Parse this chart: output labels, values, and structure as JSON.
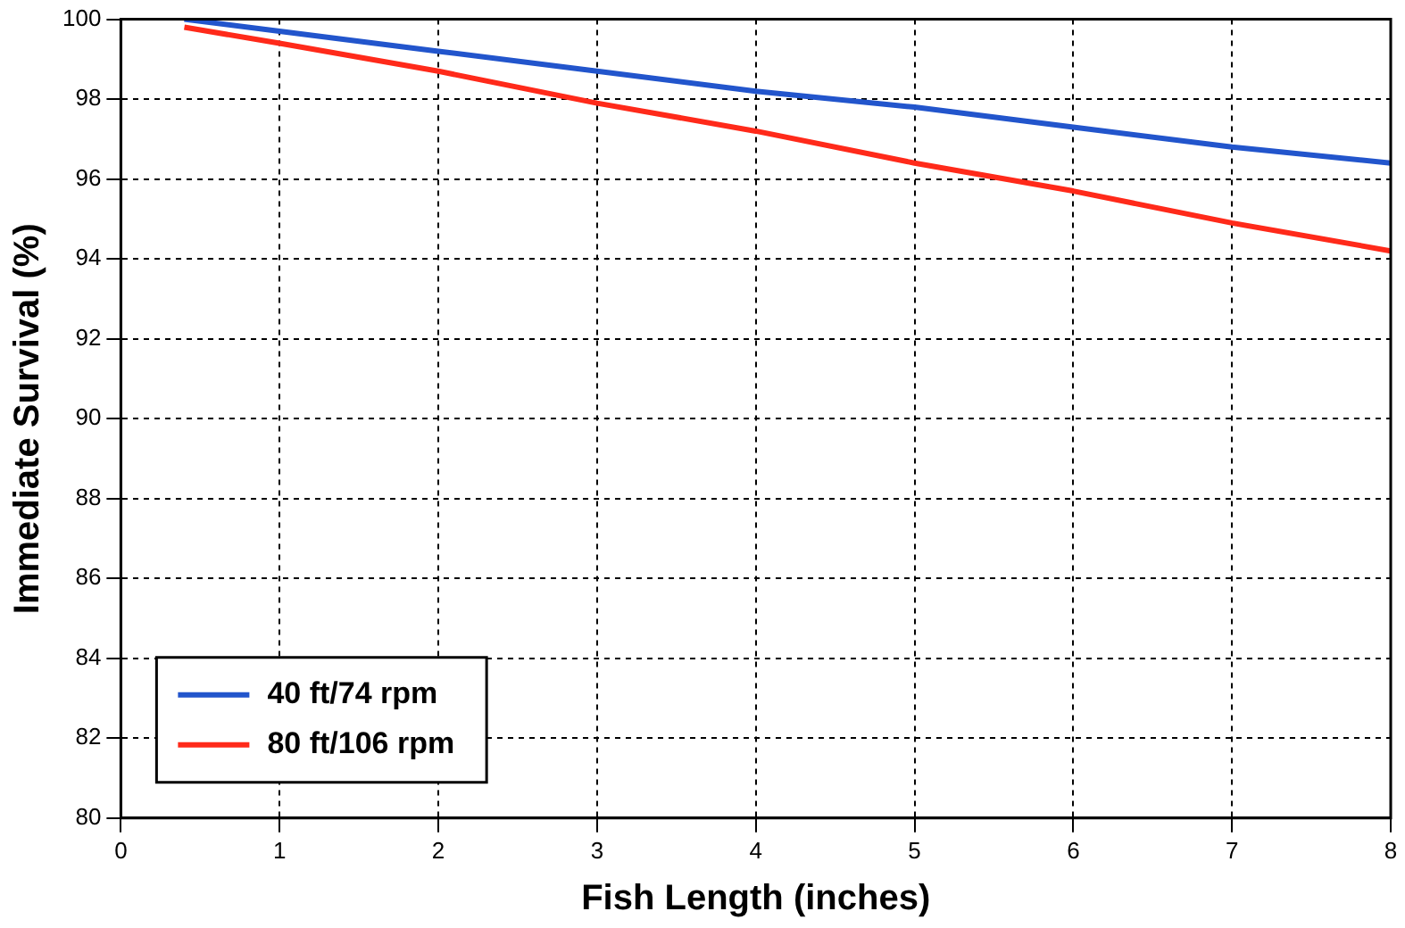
{
  "chart_data": {
    "type": "line",
    "xlabel": "Fish Length (inches)",
    "ylabel": "Immediate Survival (%)",
    "xlim": [
      0,
      8
    ],
    "xticks": [
      0,
      1,
      2,
      3,
      4,
      5,
      6,
      7,
      8
    ],
    "ylim": [
      80,
      100
    ],
    "yticks": [
      80,
      82,
      84,
      86,
      88,
      90,
      92,
      94,
      96,
      98,
      100
    ],
    "grid": true,
    "legend": "bottom left",
    "line_style": "solid",
    "marker": "none",
    "series": [
      {
        "name": "40 ft/74 rpm",
        "color": "#2255cc",
        "x": [
          0.4,
          1,
          2,
          3,
          4,
          5,
          6,
          7,
          8
        ],
        "values": [
          100,
          99.7,
          99.2,
          98.7,
          98.2,
          97.8,
          97.3,
          96.8,
          96.4
        ]
      },
      {
        "name": "80 ft/106 rpm",
        "color": "#ff2a1a",
        "x": [
          0.4,
          1,
          2,
          3,
          4,
          5,
          6,
          7,
          8
        ],
        "values": [
          99.8,
          99.4,
          98.7,
          97.9,
          97.2,
          96.4,
          95.7,
          94.9,
          94.2
        ]
      }
    ]
  }
}
